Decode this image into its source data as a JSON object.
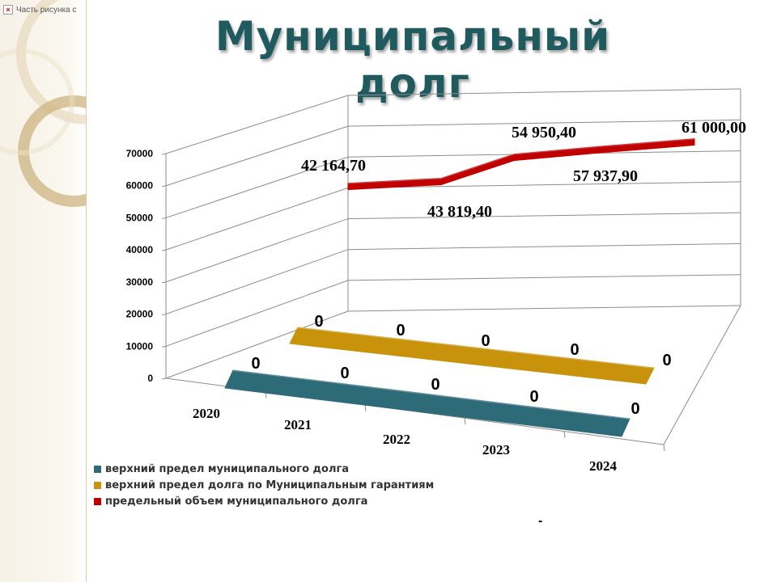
{
  "broken_image": {
    "label": "Часть рисунка с",
    "icon": "broken-image-icon"
  },
  "title": "Муниципальный долг",
  "dash": "-",
  "chart_data": {
    "type": "line",
    "view": "3d",
    "title": "Муниципальный долг",
    "categories": [
      "2020",
      "2021",
      "2022",
      "2023",
      "2024"
    ],
    "ylim": [
      0,
      70000
    ],
    "yticks": [
      "70000",
      "60000",
      "50000",
      "40000",
      "30000",
      "20000",
      "10000",
      "0"
    ],
    "grid": true,
    "legend_position": "bottom-left",
    "series": [
      {
        "name": "верхний предел муниципального долга",
        "color": "#2e6b78",
        "values": [
          0,
          0,
          0,
          0,
          0
        ],
        "labels": [
          "0",
          "0",
          "0",
          "0",
          "0"
        ]
      },
      {
        "name": "верхний предел долга по Муниципальным гарантиям",
        "color": "#c8920a",
        "values": [
          0,
          0,
          0,
          0,
          0
        ],
        "labels": [
          "0",
          "0",
          "0",
          "0",
          "0"
        ]
      },
      {
        "name": "предельный объем муниципального долга",
        "color": "#c00000",
        "values": [
          42164.7,
          43819.4,
          54950.4,
          57937.9,
          61000.0
        ],
        "labels": [
          "42 164,70",
          "43 819,40",
          "54 950,40",
          "57 937,90",
          "61 000,00"
        ]
      }
    ]
  }
}
